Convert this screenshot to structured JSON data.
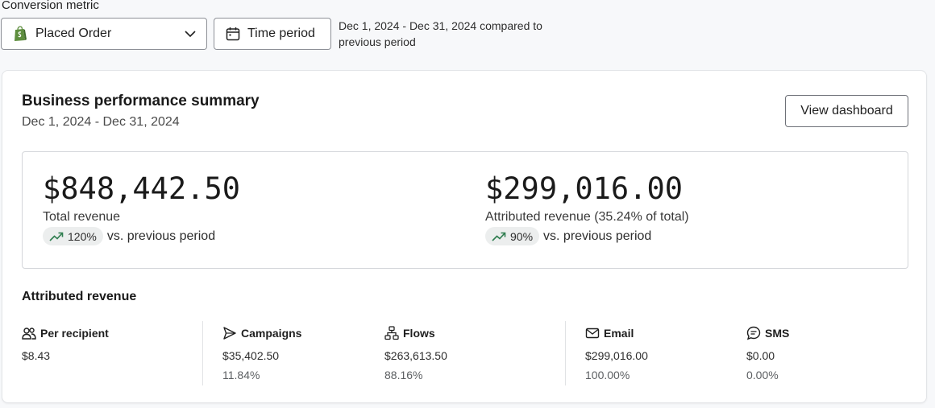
{
  "conversion": {
    "label": "Conversion metric",
    "selected": "Placed Order",
    "time_button": "Time period",
    "range_text": "Dec 1, 2024 - Dec 31, 2024 compared to previous period"
  },
  "summary": {
    "title": "Business performance summary",
    "subtitle": "Dec 1, 2024 - Dec 31, 2024",
    "view_button": "View dashboard",
    "total": {
      "value": "$848,442.50",
      "label": "Total revenue",
      "change": "120%",
      "compare": "vs. previous period"
    },
    "attributed": {
      "value": "$299,016.00",
      "label": "Attributed revenue (35.24% of total)",
      "change": "90%",
      "compare": "vs. previous period"
    }
  },
  "attributed_revenue": {
    "title": "Attributed revenue",
    "per_recipient": {
      "label": "Per recipient",
      "value": "$8.43"
    },
    "campaigns": {
      "label": "Campaigns",
      "value": "$35,402.50",
      "pct": "11.84%"
    },
    "flows": {
      "label": "Flows",
      "value": "$263,613.50",
      "pct": "88.16%"
    },
    "email": {
      "label": "Email",
      "value": "$299,016.00",
      "pct": "100.00%"
    },
    "sms": {
      "label": "SMS",
      "value": "$0.00",
      "pct": "0.00%"
    }
  },
  "colors": {
    "trend_up": "#2e7d4f",
    "shopify_green": "#5e8e3e"
  }
}
